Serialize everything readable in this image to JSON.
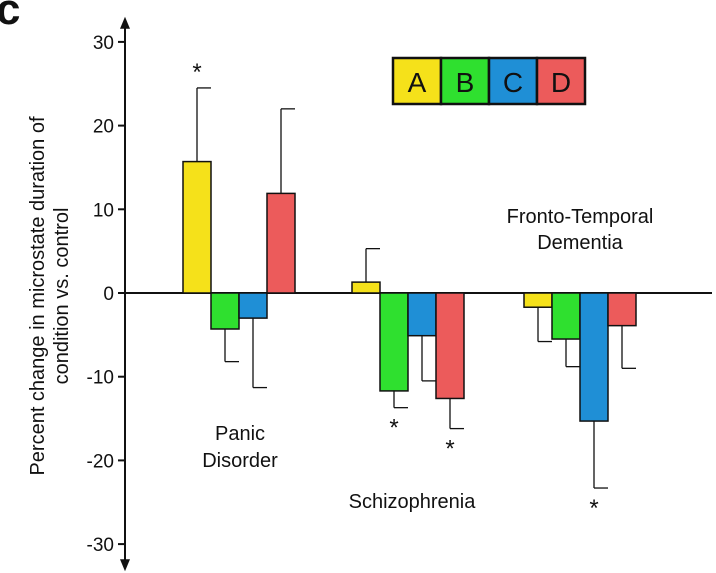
{
  "chart_data": {
    "type": "bar",
    "ylabel_line1": "Percent change in microstate duration of",
    "ylabel_line2": "condition vs. control",
    "ylim": [
      -33,
      33
    ],
    "yticks": [
      30,
      20,
      10,
      0,
      -10,
      -20,
      -30
    ],
    "ytick_labels": [
      "30",
      "20",
      "10",
      "0",
      "-10",
      "-20",
      "-30"
    ],
    "grid": false,
    "legend_position": "top-right",
    "series": [
      {
        "name": "A",
        "color": "#f5e11a"
      },
      {
        "name": "B",
        "color": "#2fe02f"
      },
      {
        "name": "C",
        "color": "#1f8fd6"
      },
      {
        "name": "D",
        "color": "#ec5b5b"
      }
    ],
    "groups": [
      {
        "label_lines": [
          "Panic",
          "Disorder"
        ],
        "values": [
          15.7,
          -4.3,
          -3.0,
          11.9
        ],
        "error_ends": [
          24.5,
          -8.2,
          -11.3,
          22.0
        ],
        "significant": [
          true,
          false,
          false,
          false
        ]
      },
      {
        "label_lines": [
          "Schizophrenia"
        ],
        "values": [
          1.3,
          -11.7,
          -5.1,
          -12.6
        ],
        "error_ends": [
          5.3,
          -13.7,
          -10.5,
          -16.2
        ],
        "significant": [
          false,
          true,
          false,
          true
        ]
      },
      {
        "label_lines": [
          "Fronto-Temporal",
          "Dementia"
        ],
        "values": [
          -1.7,
          -5.5,
          -15.3,
          -3.9
        ],
        "error_ends": [
          -5.8,
          -8.8,
          -23.3,
          -9.0
        ],
        "significant": [
          false,
          false,
          true,
          false
        ]
      }
    ],
    "significance_marker": "*"
  },
  "panel_letter": "c"
}
